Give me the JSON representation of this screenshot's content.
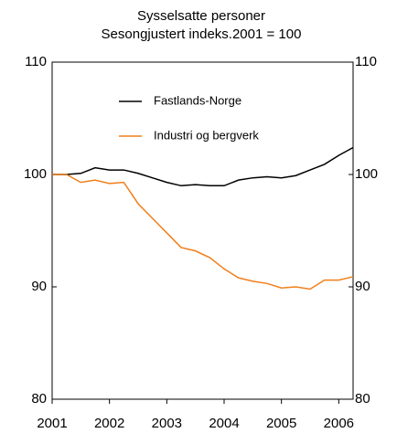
{
  "chart_data": {
    "type": "line",
    "title": "Sysselsatte personer",
    "subtitle": "Sesongjustert indeks.2001 = 100",
    "x": [
      2001,
      2001.25,
      2001.5,
      2001.75,
      2002,
      2002.25,
      2002.5,
      2002.75,
      2003,
      2003.25,
      2003.5,
      2003.75,
      2004,
      2004.25,
      2004.5,
      2004.75,
      2005,
      2005.25,
      2005.5,
      2005.75,
      2006,
      2006.25
    ],
    "series": [
      {
        "name": "Fastlands-Norge",
        "color": "#000000",
        "values": [
          100,
          100,
          100.1,
          100.6,
          100.4,
          100.4,
          100.1,
          99.7,
          99.3,
          99.0,
          99.1,
          99.0,
          99.0,
          99.5,
          99.7,
          99.8,
          99.7,
          99.9,
          100.4,
          100.9,
          101.7,
          102.4
        ]
      },
      {
        "name": "Industri og bergverk",
        "color": "#f07f1a",
        "values": [
          100,
          100,
          99.3,
          99.5,
          99.2,
          99.3,
          97.4,
          96.1,
          94.8,
          93.5,
          93.2,
          92.6,
          91.6,
          90.8,
          90.5,
          90.3,
          89.9,
          90.0,
          89.8,
          90.6,
          90.6,
          90.9
        ]
      }
    ],
    "xlim": [
      2001,
      2006.25
    ],
    "xticks": [
      2001,
      2002,
      2003,
      2004,
      2005,
      2006
    ],
    "ylim": [
      80,
      110
    ],
    "yticks": [
      80,
      90,
      100,
      110
    ],
    "y2lim": [
      80,
      110
    ],
    "y2ticks": [
      80,
      90,
      100,
      110
    ],
    "grid": false
  }
}
